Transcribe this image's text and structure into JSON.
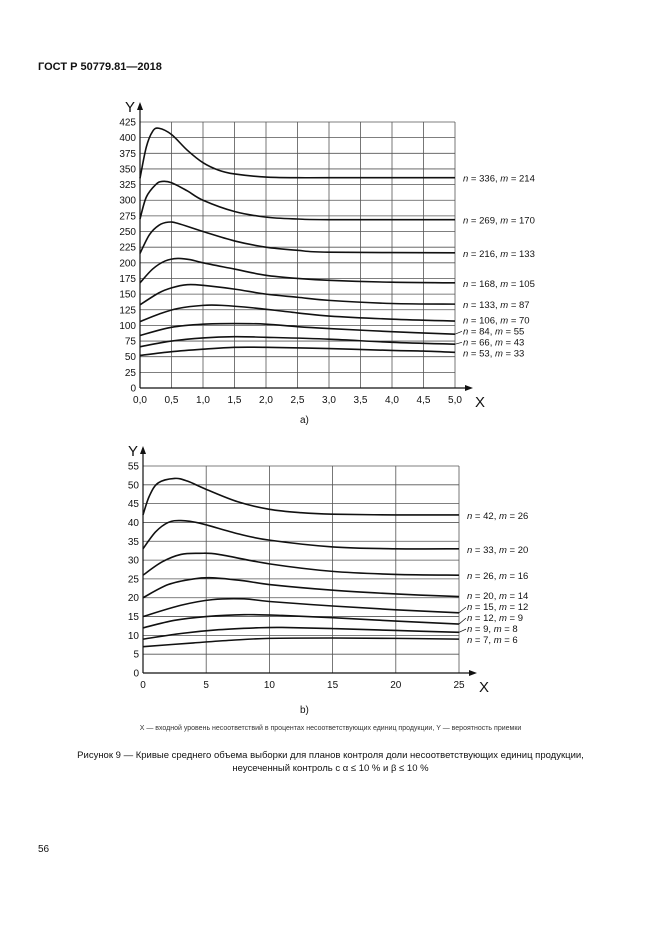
{
  "header": {
    "doc_id": "ГОСТ Р 50779.81—2018"
  },
  "caption": {
    "axes_note": "X — входной уровень несоответствий в процентах несоответствующих единиц продукции, Y — вероятность приемки",
    "figure_line1": "Рисунок 9 — Кривые среднего объема выборки для планов контроля доли несоответствующих единиц продукции,",
    "figure_line2": "неусеченный контроль с α ≤ 10 % и β ≤ 10 %"
  },
  "page_number": "56",
  "chart_data": [
    {
      "type": "line",
      "panel_label": "a)",
      "xlabel": "X",
      "ylabel": "Y",
      "xlim": [
        0,
        5
      ],
      "ylim": [
        0,
        425
      ],
      "x_ticks": [
        "0,0",
        "0,5",
        "1,0",
        "1,5",
        "2,0",
        "2,5",
        "3,0",
        "3,5",
        "4,0",
        "4,5",
        "5,0"
      ],
      "x_tick_values": [
        0,
        0.5,
        1,
        1.5,
        2,
        2.5,
        3,
        3.5,
        4,
        4.5,
        5
      ],
      "y_ticks": [
        "0",
        "25",
        "50",
        "75",
        "100",
        "125",
        "150",
        "175",
        "200",
        "225",
        "250",
        "275",
        "300",
        "325",
        "350",
        "375",
        "400",
        "425"
      ],
      "y_tick_values": [
        0,
        25,
        50,
        75,
        100,
        125,
        150,
        175,
        200,
        225,
        250,
        275,
        300,
        325,
        350,
        375,
        400,
        425
      ],
      "grid": true,
      "legend_placement": "right",
      "color": "#111111",
      "series": [
        {
          "name": "n = 336, m = 214",
          "x": [
            0,
            0.1,
            0.2,
            0.3,
            0.5,
            0.75,
            1,
            1.25,
            1.5,
            2,
            2.5,
            3,
            5
          ],
          "y": [
            335,
            385,
            410,
            415,
            405,
            380,
            360,
            348,
            342,
            337,
            336,
            336,
            336
          ]
        },
        {
          "name": "n = 269, m = 170",
          "x": [
            0,
            0.1,
            0.25,
            0.35,
            0.5,
            0.75,
            1,
            1.5,
            2,
            2.5,
            3,
            5
          ],
          "y": [
            270,
            305,
            325,
            330,
            328,
            315,
            300,
            282,
            273,
            270,
            269,
            269
          ]
        },
        {
          "name": "n = 216, m = 133",
          "x": [
            0,
            0.15,
            0.3,
            0.45,
            0.6,
            1,
            1.5,
            2,
            2.5,
            3,
            5
          ],
          "y": [
            215,
            245,
            260,
            265,
            263,
            250,
            235,
            225,
            220,
            217,
            216
          ]
        },
        {
          "name": "n = 168, m = 105",
          "x": [
            0,
            0.2,
            0.4,
            0.6,
            0.8,
            1,
            1.5,
            2,
            2.5,
            3,
            4,
            5
          ],
          "y": [
            168,
            190,
            203,
            207,
            205,
            200,
            190,
            180,
            175,
            172,
            169,
            168
          ]
        },
        {
          "name": "n = 133, m = 87",
          "x": [
            0,
            0.3,
            0.5,
            0.75,
            1,
            1.5,
            2,
            2.5,
            3,
            4,
            5
          ],
          "y": [
            133,
            152,
            160,
            165,
            164,
            158,
            150,
            145,
            140,
            135,
            134
          ]
        },
        {
          "name": "n = 106, m = 70",
          "x": [
            0,
            0.3,
            0.6,
            1,
            1.3,
            1.8,
            2.5,
            3,
            4,
            5
          ],
          "y": [
            106,
            118,
            127,
            132,
            132,
            128,
            120,
            115,
            110,
            107
          ]
        },
        {
          "name": "n = 84, m = 55",
          "x": [
            0,
            0.5,
            1,
            1.5,
            2,
            2.5,
            3,
            4,
            5
          ],
          "y": [
            84,
            97,
            102,
            103,
            102,
            98,
            95,
            90,
            86
          ]
        },
        {
          "name": "n = 66, m = 43",
          "x": [
            0,
            0.5,
            1,
            1.5,
            2,
            3,
            4,
            5
          ],
          "y": [
            66,
            75,
            80,
            82,
            81,
            78,
            73,
            70
          ]
        },
        {
          "name": "n = 53, m = 33",
          "x": [
            0,
            0.5,
            1,
            1.5,
            2,
            3,
            4,
            4.5,
            5
          ],
          "y": [
            52,
            58,
            62,
            65,
            65,
            63,
            60,
            59,
            57
          ]
        }
      ]
    },
    {
      "type": "line",
      "panel_label": "b)",
      "xlabel": "X",
      "ylabel": "Y",
      "xlim": [
        0,
        25
      ],
      "ylim": [
        0,
        55
      ],
      "x_ticks": [
        "0",
        "5",
        "10",
        "15",
        "20",
        "25"
      ],
      "x_tick_values": [
        0,
        5,
        10,
        15,
        20,
        25
      ],
      "y_ticks": [
        "0",
        "5",
        "10",
        "15",
        "20",
        "25",
        "30",
        "35",
        "40",
        "45",
        "50",
        "55"
      ],
      "y_tick_values": [
        0,
        5,
        10,
        15,
        20,
        25,
        30,
        35,
        40,
        45,
        50,
        55
      ],
      "grid": true,
      "legend_placement": "right",
      "color": "#111111",
      "series": [
        {
          "name": "n = 42, m = 26",
          "x": [
            0,
            0.5,
            1.2,
            2.5,
            3.5,
            5,
            7.5,
            10,
            12.5,
            15,
            20,
            25
          ],
          "y": [
            42,
            47,
            50.5,
            51.7,
            51,
            48.8,
            45.5,
            43.5,
            42.6,
            42.2,
            42,
            42
          ]
        },
        {
          "name": "n = 33, m = 20",
          "x": [
            0,
            1,
            2,
            3,
            4.5,
            7.5,
            10,
            15,
            20,
            25
          ],
          "y": [
            33,
            37.5,
            40,
            40.5,
            39.8,
            37,
            35.3,
            33.5,
            33,
            33
          ]
        },
        {
          "name": "n = 26, m = 16",
          "x": [
            0,
            1.5,
            3,
            4.5,
            6,
            10,
            15,
            20,
            25
          ],
          "y": [
            26,
            29.5,
            31.5,
            31.8,
            31.5,
            29,
            27,
            26.2,
            26
          ]
        },
        {
          "name": "n = 20, m = 14",
          "x": [
            0,
            2,
            4,
            5.5,
            8,
            10,
            15,
            20,
            25
          ],
          "y": [
            20,
            23.5,
            25,
            25.3,
            24.5,
            23.5,
            22,
            21,
            20.3
          ]
        },
        {
          "name": "n = 15, m = 12",
          "x": [
            0,
            3,
            5.5,
            8,
            10,
            15,
            20,
            25
          ],
          "y": [
            15,
            18,
            19.5,
            19.7,
            19,
            17.8,
            16.8,
            16
          ]
        },
        {
          "name": "n = 12, m = 9",
          "x": [
            0,
            2.5,
            5,
            8,
            11,
            15,
            20,
            25
          ],
          "y": [
            12,
            14,
            15,
            15.5,
            15.3,
            14.7,
            13.8,
            13
          ]
        },
        {
          "name": "n = 9, m = 8",
          "x": [
            0,
            3,
            6,
            9,
            11,
            15,
            20,
            25
          ],
          "y": [
            9,
            10.5,
            11.5,
            12,
            12.1,
            11.8,
            11.3,
            10.8
          ]
        },
        {
          "name": "n = 7, m = 6",
          "x": [
            0,
            4,
            7,
            10,
            15,
            20,
            25
          ],
          "y": [
            7,
            8,
            8.7,
            9.2,
            9.3,
            9.2,
            9
          ]
        }
      ]
    }
  ]
}
